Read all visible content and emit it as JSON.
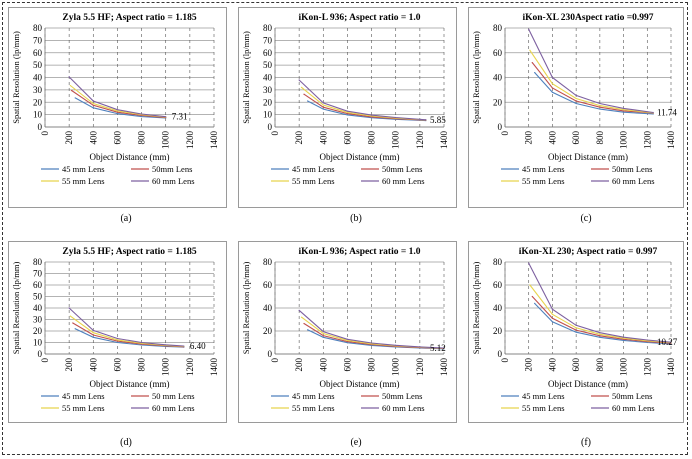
{
  "colors": {
    "45 mm Lens": "#4f81bd",
    "50mm Lens": "#c0504d",
    "55 mm Lens": "#e8d44d",
    "60 mm Lens": "#7d60a0"
  },
  "figure_labels": [
    "(a)",
    "(b)",
    "(c)",
    "(d)",
    "(e)",
    "(f)"
  ],
  "chart_data": [
    {
      "type": "line",
      "title": "Zyla 5.5 HF; Aspect ratio = 1.185",
      "xlabel": "Object Distance (mm)",
      "ylabel": "Spatial Resolution (lp/mm)",
      "xlim": [
        0,
        1400
      ],
      "ylim": [
        0,
        80
      ],
      "xticks": [
        0,
        200,
        400,
        600,
        800,
        1000,
        1200,
        1400
      ],
      "yticks": [
        0,
        10,
        20,
        30,
        40,
        50,
        60,
        70,
        80
      ],
      "annotation": "7.31",
      "legend": [
        "45 mm Lens",
        "50mm Lens",
        "55 mm Lens",
        "60 mm Lens"
      ],
      "series": [
        {
          "name": "45 mm Lens",
          "x": [
            250,
            400,
            600,
            800,
            1000
          ],
          "y": [
            23.5,
            15.5,
            10.8,
            8.4,
            7.31
          ]
        },
        {
          "name": "50mm Lens",
          "x": [
            220,
            400,
            600,
            800,
            1000
          ],
          "y": [
            29.5,
            17.5,
            12.0,
            9.3,
            7.6
          ]
        },
        {
          "name": "55 mm Lens",
          "x": [
            210,
            400,
            600,
            800,
            1000
          ],
          "y": [
            33.5,
            19.0,
            13.0,
            10.0,
            8.0
          ]
        },
        {
          "name": "60 mm Lens",
          "x": [
            200,
            400,
            600,
            800,
            1000
          ],
          "y": [
            40.5,
            21.0,
            14.0,
            10.5,
            8.3
          ]
        }
      ]
    },
    {
      "type": "line",
      "title": "iKon-L 936; Aspect ratio = 1.0",
      "xlabel": "Object Distance (mm)",
      "ylabel": "Spatial Resolution (lp/mm)",
      "xlim": [
        0,
        1400
      ],
      "ylim": [
        0,
        80
      ],
      "xticks": [
        0,
        200,
        400,
        600,
        800,
        1000,
        1200,
        1400
      ],
      "yticks": [
        0,
        10,
        20,
        30,
        40,
        50,
        60,
        70,
        80
      ],
      "annotation": "5.85",
      "legend": [
        "45 mm Lens",
        "50mm Lens",
        "55 mm Lens",
        "60 mm Lens"
      ],
      "series": [
        {
          "name": "45 mm Lens",
          "x": [
            270,
            400,
            600,
            800,
            1000,
            1250
          ],
          "y": [
            21.0,
            14.5,
            9.8,
            7.5,
            6.2,
            5.2
          ]
        },
        {
          "name": "50mm Lens",
          "x": [
            240,
            400,
            600,
            800,
            1000,
            1250
          ],
          "y": [
            26.5,
            16.0,
            10.8,
            8.2,
            6.7,
            5.5
          ]
        },
        {
          "name": "55 mm Lens",
          "x": [
            220,
            400,
            600,
            800,
            1000,
            1250
          ],
          "y": [
            32.0,
            17.8,
            11.8,
            8.9,
            7.2,
            5.7
          ]
        },
        {
          "name": "60 mm Lens",
          "x": [
            200,
            400,
            600,
            800,
            1000,
            1250
          ],
          "y": [
            38.0,
            19.5,
            12.8,
            9.6,
            7.7,
            5.85
          ]
        }
      ]
    },
    {
      "type": "line",
      "title": "iKon-XL 230Aspect ratio =0.997",
      "xlabel": "Object Distance (mm)",
      "ylabel": "Spatial Resolution (lp/mm)",
      "xlim": [
        0,
        1400
      ],
      "ylim": [
        0,
        80
      ],
      "xticks": [
        0,
        200,
        400,
        600,
        800,
        1000,
        1200,
        1400
      ],
      "yticks": [
        0,
        20,
        40,
        60,
        80
      ],
      "annotation": "11.74",
      "legend": [
        "45 mm Lens",
        "50mm Lens",
        "55 mm Lens",
        "60 mm Lens"
      ],
      "series": [
        {
          "name": "45 mm Lens",
          "x": [
            250,
            400,
            600,
            800,
            1000,
            1250
          ],
          "y": [
            44.0,
            28.0,
            19.0,
            14.5,
            12.0,
            10.5
          ]
        },
        {
          "name": "50mm Lens",
          "x": [
            230,
            400,
            600,
            800,
            1000,
            1250
          ],
          "y": [
            52.0,
            31.5,
            21.0,
            16.0,
            13.0,
            11.2
          ]
        },
        {
          "name": "55 mm Lens",
          "x": [
            210,
            400,
            600,
            800,
            1000,
            1250
          ],
          "y": [
            62.0,
            35.0,
            23.0,
            17.3,
            14.0,
            11.5
          ]
        },
        {
          "name": "60 mm Lens",
          "x": [
            200,
            400,
            600,
            800,
            1000,
            1250
          ],
          "y": [
            79.0,
            40.0,
            25.5,
            19.0,
            15.0,
            11.74
          ]
        }
      ]
    },
    {
      "type": "line",
      "title": "Zyla 5.5 HF; Aspect ratio = 1.185",
      "xlabel": "Object Distance (mm)",
      "ylabel": "Spatial Resolution (lp/mm)",
      "xlim": [
        0,
        1400
      ],
      "ylim": [
        0,
        80
      ],
      "xticks": [
        0,
        200,
        400,
        600,
        800,
        1000,
        1200,
        1400
      ],
      "yticks": [
        0,
        10,
        20,
        30,
        40,
        50,
        60,
        70,
        80
      ],
      "annotation": "6.40",
      "legend": [
        "45 mm Lens",
        "50 mm Lens",
        "55 mm Lens",
        "60 mm Lens"
      ],
      "series": [
        {
          "name": "45 mm Lens",
          "x": [
            250,
            400,
            600,
            800,
            1000,
            1150
          ],
          "y": [
            22.0,
            14.5,
            10.0,
            7.8,
            6.6,
            6.0
          ]
        },
        {
          "name": "50 mm Lens",
          "x": [
            230,
            400,
            600,
            800,
            1000,
            1150
          ],
          "y": [
            27.0,
            16.5,
            11.2,
            8.6,
            7.1,
            6.3
          ]
        },
        {
          "name": "55 mm Lens",
          "x": [
            210,
            400,
            600,
            800,
            1000,
            1150
          ],
          "y": [
            33.0,
            18.5,
            12.3,
            9.3,
            7.6,
            6.6
          ]
        },
        {
          "name": "60 mm Lens",
          "x": [
            200,
            400,
            600,
            800,
            1000,
            1150
          ],
          "y": [
            40.0,
            20.5,
            13.5,
            10.0,
            8.0,
            6.9
          ]
        }
      ]
    },
    {
      "type": "line",
      "title": "iKon-L 936; Aspect ratio = 1.0",
      "xlabel": "Object Distance (mm)",
      "ylabel": "Spatial Resolution (lp/mm)",
      "xlim": [
        0,
        1400
      ],
      "ylim": [
        0,
        80
      ],
      "xticks": [
        0,
        200,
        400,
        600,
        800,
        1000,
        1200,
        1400
      ],
      "yticks": [
        0,
        20,
        40,
        60,
        80
      ],
      "annotation": "5.12",
      "legend": [
        "45 mm Lens",
        "50mm Lens",
        "55 mm Lens",
        "60 mm Lens"
      ],
      "series": [
        {
          "name": "45 mm Lens",
          "x": [
            270,
            400,
            600,
            800,
            1000,
            1200,
            1400
          ],
          "y": [
            21.0,
            14.5,
            9.8,
            7.5,
            6.1,
            5.2,
            4.5
          ]
        },
        {
          "name": "50mm Lens",
          "x": [
            240,
            400,
            600,
            800,
            1000,
            1200,
            1400
          ],
          "y": [
            26.5,
            16.0,
            10.8,
            8.2,
            6.6,
            5.6,
            4.8
          ]
        },
        {
          "name": "55 mm Lens",
          "x": [
            220,
            400,
            600,
            800,
            1000,
            1200,
            1400
          ],
          "y": [
            32.0,
            17.8,
            11.8,
            8.9,
            7.1,
            5.9,
            5.0
          ]
        },
        {
          "name": "60 mm Lens",
          "x": [
            200,
            400,
            600,
            800,
            1000,
            1200,
            1400
          ],
          "y": [
            38.0,
            19.5,
            12.8,
            9.6,
            7.6,
            6.2,
            5.12
          ]
        }
      ]
    },
    {
      "type": "line",
      "title": "iKon-XL 230; Aspect ratio = 0.997",
      "xlabel": "Object Distance (mm)",
      "ylabel": "Spatial Resolution (lp/mm)",
      "xlim": [
        0,
        1400
      ],
      "ylim": [
        0,
        80
      ],
      "xticks": [
        0,
        200,
        400,
        600,
        800,
        1000,
        1200,
        1400
      ],
      "yticks": [
        0,
        20,
        40,
        60,
        80
      ],
      "annotation": "10.27",
      "legend": [
        "45 mm Lens",
        "50mm Lens",
        "55 mm Lens",
        "60 mm Lens"
      ],
      "series": [
        {
          "name": "45 mm Lens",
          "x": [
            250,
            400,
            600,
            800,
            1000,
            1200,
            1400
          ],
          "y": [
            44.0,
            28.0,
            19.0,
            14.5,
            11.8,
            10.0,
            8.8
          ]
        },
        {
          "name": "50mm Lens",
          "x": [
            230,
            400,
            600,
            800,
            1000,
            1200,
            1400
          ],
          "y": [
            50.0,
            31.0,
            20.8,
            15.8,
            12.8,
            10.8,
            9.4
          ]
        },
        {
          "name": "55 mm Lens",
          "x": [
            210,
            400,
            600,
            800,
            1000,
            1200,
            1400
          ],
          "y": [
            60.0,
            34.5,
            22.8,
            17.1,
            13.7,
            11.5,
            9.9
          ]
        },
        {
          "name": "60 mm Lens",
          "x": [
            200,
            400,
            600,
            800,
            1000,
            1200,
            1400
          ],
          "y": [
            79.0,
            39.0,
            25.0,
            18.5,
            14.6,
            12.2,
            10.27
          ]
        }
      ]
    }
  ]
}
